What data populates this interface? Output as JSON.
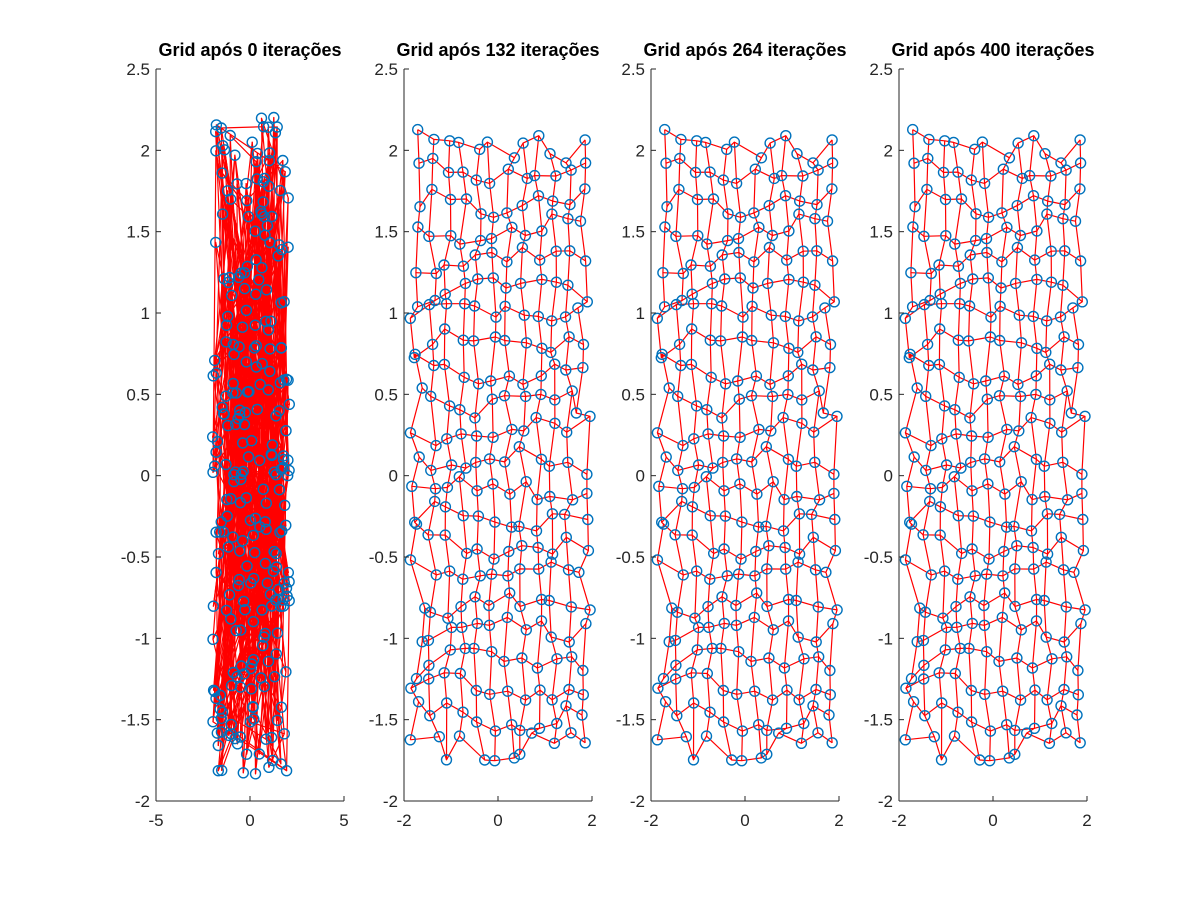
{
  "colors": {
    "points": "#0072BD",
    "lines": "#FF0000",
    "axes": "#262626",
    "background": "#FFFFFF"
  },
  "chart_data": [
    {
      "type": "scatter",
      "title": "Grid após 0 iterações",
      "xlim": [
        -5,
        5
      ],
      "ylim": [
        -2,
        2.5
      ],
      "x_ticks": [
        "-5",
        "0",
        "5"
      ],
      "y_ticks": [
        "-2",
        "-1.5",
        "-1",
        "-0.5",
        "0",
        "0.5",
        "1",
        "1.5",
        "2",
        "2.5"
      ],
      "grid": false,
      "state": "random",
      "x_range": [
        -2.0,
        2.1
      ],
      "y_range": [
        -1.85,
        2.22
      ],
      "marker": "o",
      "line_color": "red"
    },
    {
      "type": "scatter",
      "title": "Grid após 132 iterações",
      "xlim": [
        -2,
        2
      ],
      "ylim": [
        -2,
        2.5
      ],
      "x_ticks": [
        "-2",
        "0",
        "2"
      ],
      "y_ticks": [
        "-2",
        "-1.5",
        "-1",
        "-0.5",
        "0",
        "0.5",
        "1",
        "1.5",
        "2",
        "2.5"
      ],
      "grid": false,
      "state": "organized",
      "x_range": [
        -1.72,
        1.82
      ],
      "y_range": [
        -1.66,
        2.04
      ],
      "marker": "o",
      "line_color": "red"
    },
    {
      "type": "scatter",
      "title": "Grid após 264 iterações",
      "xlim": [
        -2,
        2
      ],
      "ylim": [
        -2,
        2.5
      ],
      "x_ticks": [
        "-2",
        "0",
        "2"
      ],
      "y_ticks": [
        "-2",
        "-1.5",
        "-1",
        "-0.5",
        "0",
        "0.5",
        "1",
        "1.5",
        "2",
        "2.5"
      ],
      "grid": false,
      "state": "organized",
      "x_range": [
        -1.72,
        1.82
      ],
      "y_range": [
        -1.66,
        2.04
      ],
      "marker": "o",
      "line_color": "red"
    },
    {
      "type": "scatter",
      "title": "Grid após 400 iterações",
      "xlim": [
        -2,
        2
      ],
      "ylim": [
        -2,
        2.5
      ],
      "x_ticks": [
        "-2",
        "0",
        "2"
      ],
      "y_ticks": [
        "-2",
        "-1.5",
        "-1",
        "-0.5",
        "0",
        "0.5",
        "1",
        "1.5",
        "2",
        "2.5"
      ],
      "grid": false,
      "state": "organized",
      "x_range": [
        -1.72,
        1.82
      ],
      "y_range": [
        -1.66,
        2.04
      ],
      "marker": "o",
      "line_color": "red"
    }
  ]
}
